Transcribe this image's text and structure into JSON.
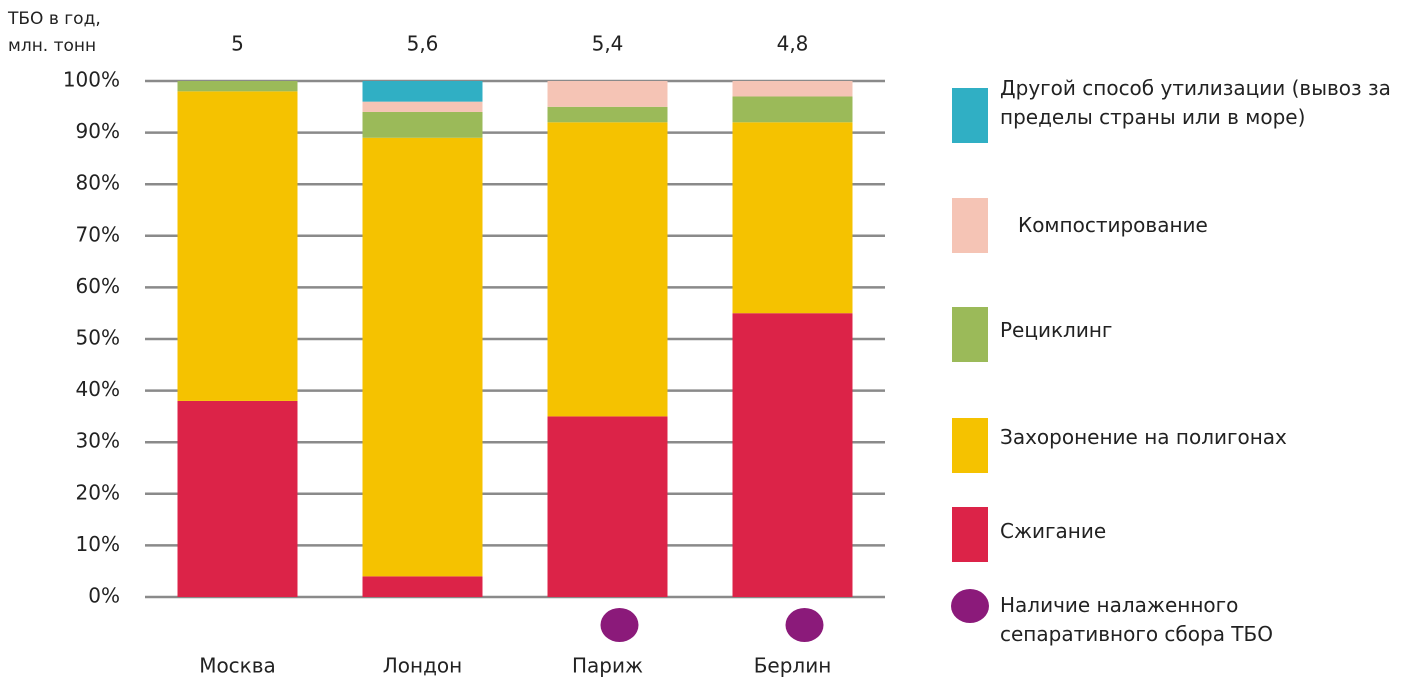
{
  "chart_data": {
    "type": "stacked_bar",
    "axis_label": "ТБО в год, млн. тонн",
    "categories": [
      "Москва",
      "Лондон",
      "Париж",
      "Берлин"
    ],
    "series": [
      {
        "name": "Сжигание",
        "color": "#dc2348",
        "values": [
          38,
          4,
          35,
          55
        ]
      },
      {
        "name": "Захоронение на полигонах",
        "color": "#f5c200",
        "values": [
          60,
          85,
          57,
          37
        ]
      },
      {
        "name": "Рециклинг",
        "color": "#9bba59",
        "values": [
          2,
          5,
          3,
          5
        ]
      },
      {
        "name": "Компостирование",
        "color": "#f5c4b5",
        "values": [
          0,
          2,
          5,
          3
        ]
      },
      {
        "name": "Другой способ утилизации (вывоз за пределы страны или в море)",
        "color": "#30afc4",
        "values": [
          0,
          4,
          0,
          0
        ]
      }
    ],
    "totals": {
      "values": [
        5,
        5.6,
        5.4,
        4.8
      ],
      "value_labels": [
        "5",
        "5,6",
        "5,4",
        "4,8"
      ]
    },
    "separate_collection": {
      "name": "Наличие налаженного сепаративного сбора ТБО",
      "color": "#8b1a7a",
      "values": [
        false,
        false,
        true,
        true
      ]
    },
    "ylim": [
      0,
      100
    ],
    "yticks": [
      {
        "value": 0,
        "label": "0%"
      },
      {
        "value": 10,
        "label": "10%"
      },
      {
        "value": 20,
        "label": "20%"
      },
      {
        "value": 30,
        "label": "30%"
      },
      {
        "value": 40,
        "label": "40%"
      },
      {
        "value": 50,
        "label": "50%"
      },
      {
        "value": 60,
        "label": "60%"
      },
      {
        "value": 70,
        "label": "70%"
      },
      {
        "value": 80,
        "label": "80%"
      },
      {
        "value": 90,
        "label": "90%"
      },
      {
        "value": 100,
        "label": "100%"
      }
    ],
    "grid": true
  }
}
